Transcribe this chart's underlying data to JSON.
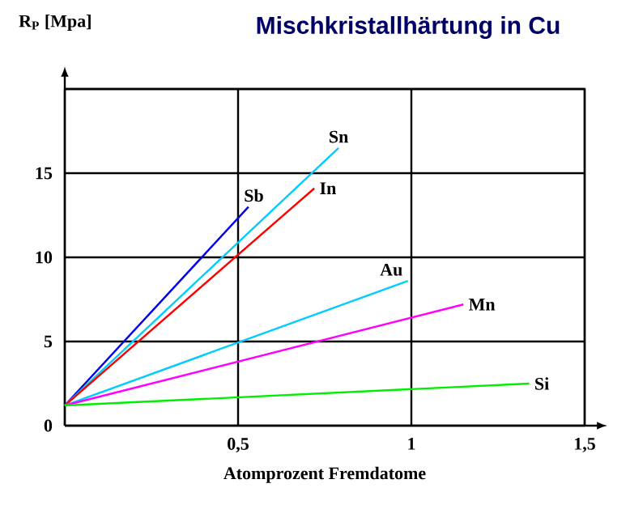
{
  "chart_data": {
    "type": "line",
    "title": "Mischkristallhärtung in Cu",
    "xlabel": "Atomprozent Fremdatome",
    "ylabel": "R$_{P}$ [Mpa]",
    "xlim": [
      0,
      1.5
    ],
    "ylim": [
      0,
      20
    ],
    "xticks": [
      {
        "value": 0,
        "label": null
      },
      {
        "value": 0.5,
        "label": "0,5"
      },
      {
        "value": 1,
        "label": "1"
      },
      {
        "value": 1.5,
        "label": "1,5"
      }
    ],
    "yticks": [
      0,
      5,
      10,
      15,
      {
        "value": 20,
        "label": null
      }
    ],
    "grid": true,
    "legend": false,
    "marker": "none",
    "line_style": "solid",
    "series": [
      {
        "name": "Sb",
        "color": "#0000ee",
        "x": [
          0,
          0.53
        ],
        "values": [
          1.2,
          13.0
        ]
      },
      {
        "name": "Sn",
        "color": "#00ccff",
        "x": [
          0,
          0.79
        ],
        "values": [
          1.2,
          16.5
        ]
      },
      {
        "name": "In",
        "color": "#ff0000",
        "x": [
          0,
          0.72
        ],
        "values": [
          1.2,
          14.1
        ]
      },
      {
        "name": "Au",
        "color": "#00ccff",
        "x": [
          0,
          0.99
        ],
        "values": [
          1.2,
          8.6
        ]
      },
      {
        "name": "Mn",
        "color": "#ff00ff",
        "x": [
          0,
          1.15
        ],
        "values": [
          1.2,
          7.2
        ]
      },
      {
        "name": "Si",
        "color": "#00ee00",
        "x": [
          0,
          1.34
        ],
        "values": [
          1.2,
          2.5
        ]
      }
    ]
  }
}
